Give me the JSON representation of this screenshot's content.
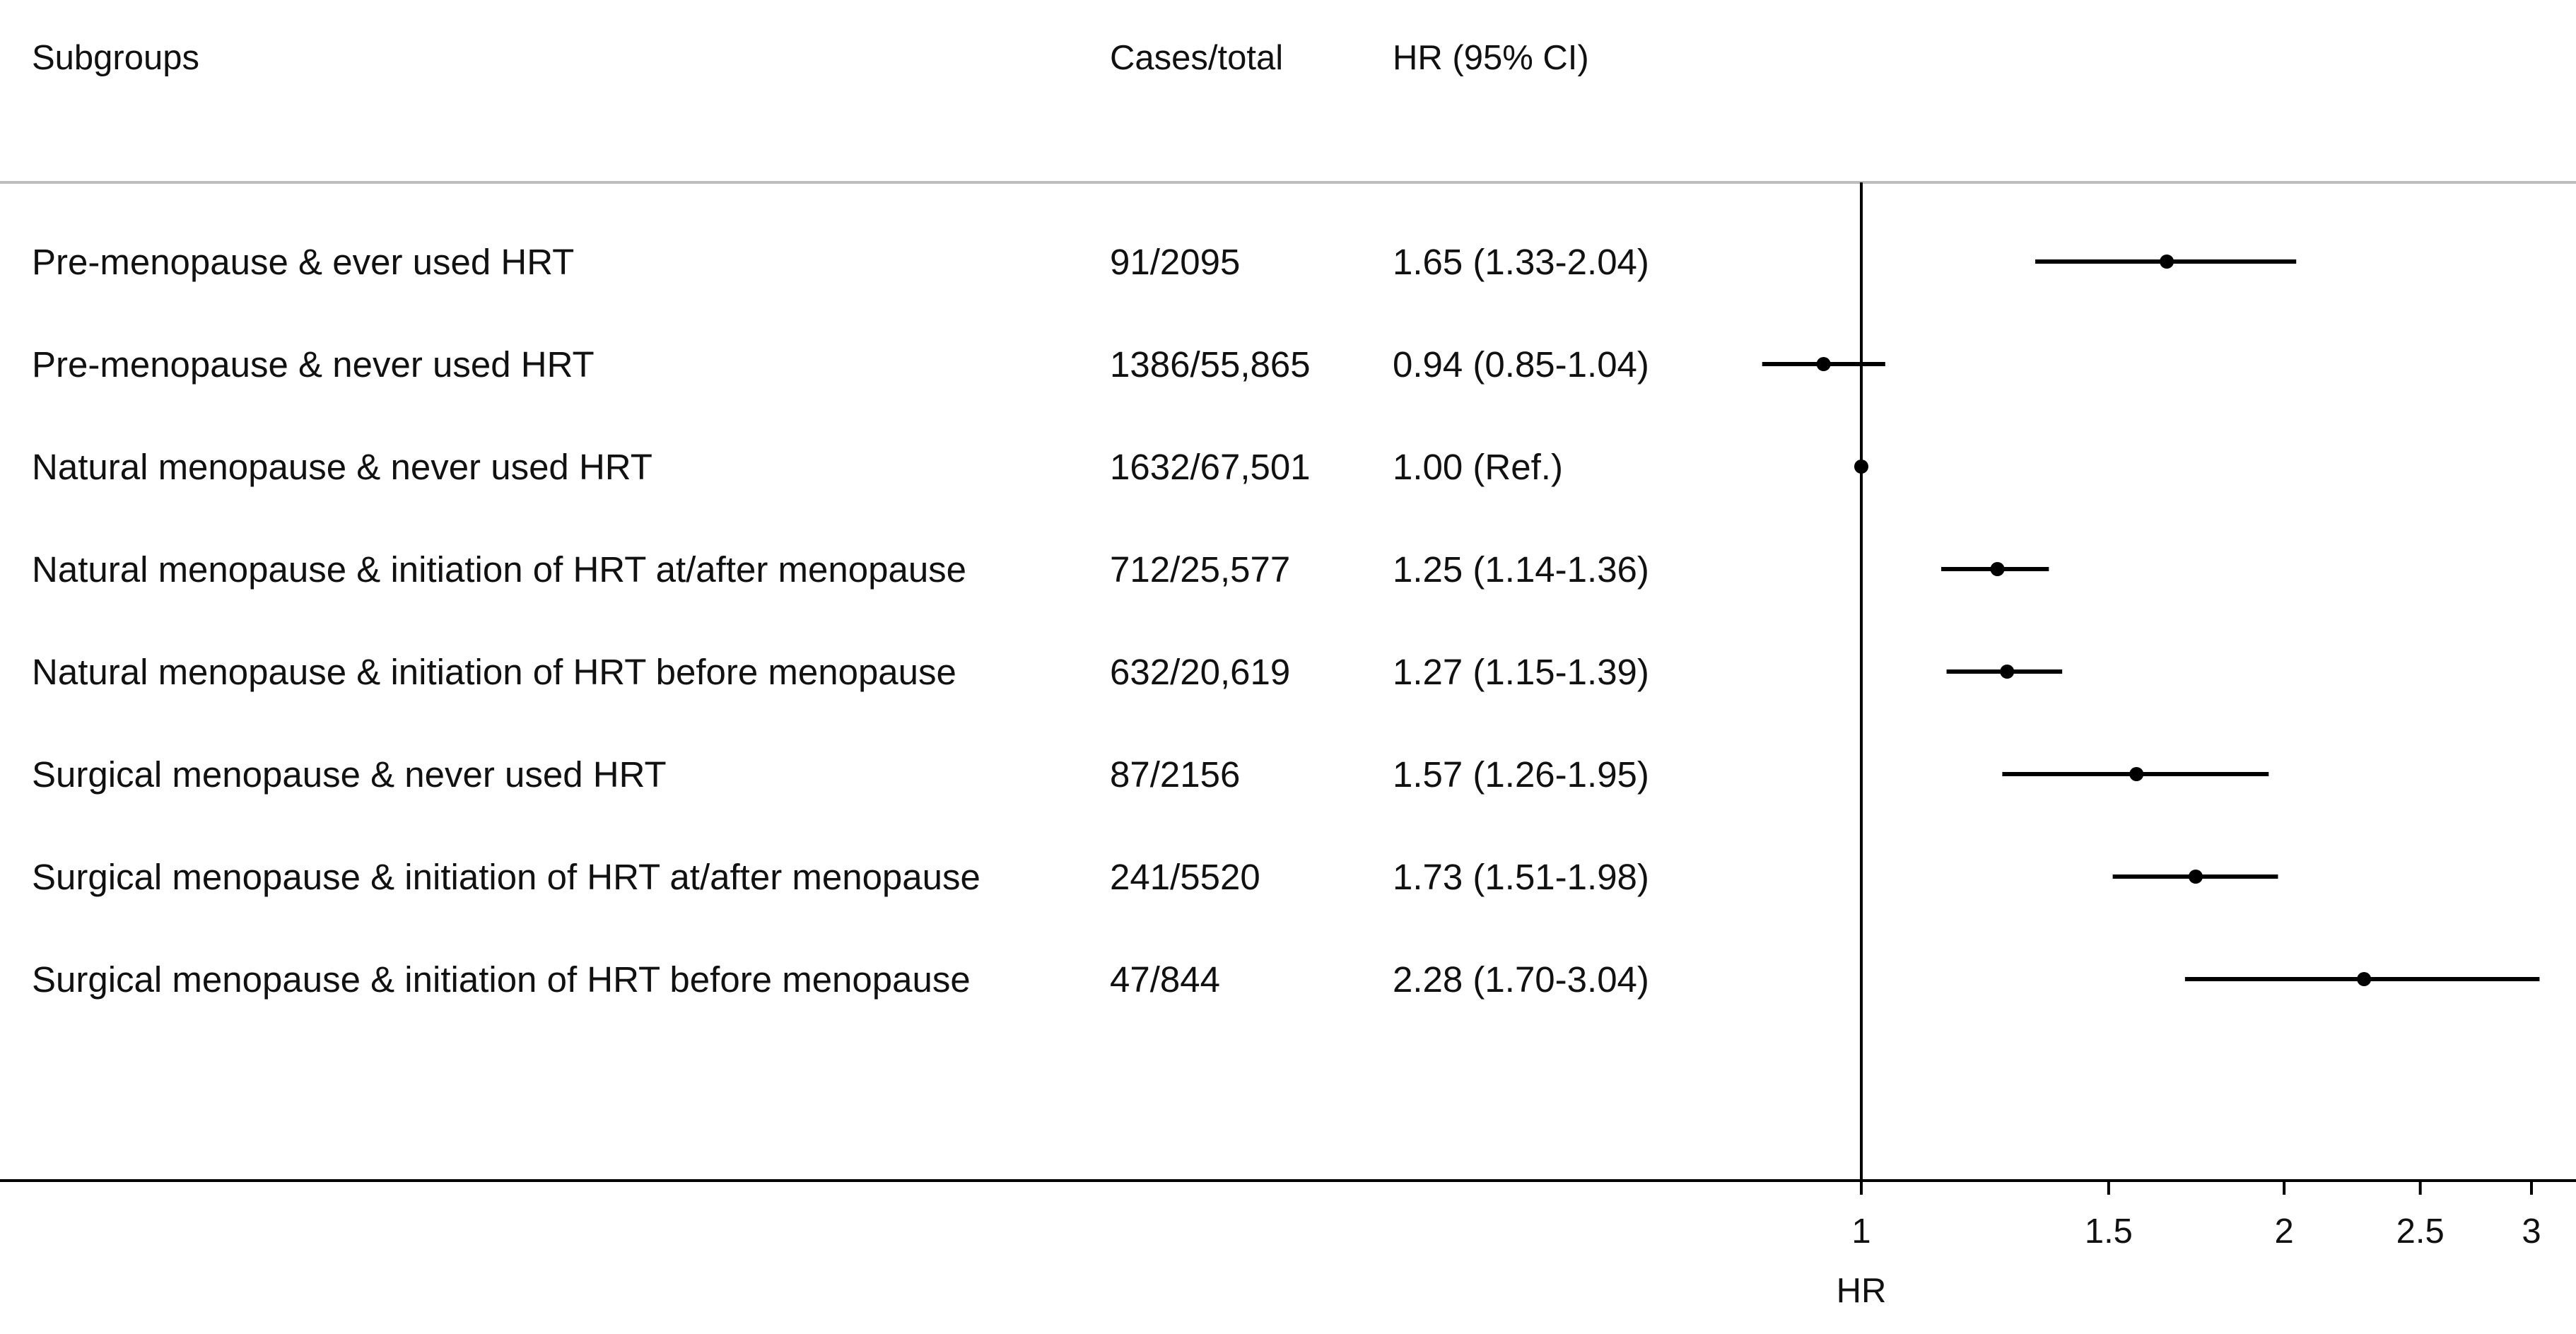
{
  "headers": {
    "subgroups": "Subgroups",
    "cases": "Cases/total",
    "hr": "HR (95% CI)"
  },
  "chart_data": {
    "type": "forest",
    "xlabel": "HR",
    "xscale": "log",
    "xlim": [
      0.84,
      3.06
    ],
    "reference_line": 1,
    "xticks": [
      1,
      1.5,
      2,
      2.5,
      3
    ],
    "xtick_labels": [
      "1",
      "1.5",
      "2",
      "2.5",
      "3"
    ],
    "rows": [
      {
        "label": "Pre-menopause & ever used HRT",
        "cases": "91/2095",
        "hr_text": "1.65 (1.33-2.04)",
        "hr": 1.65,
        "lo": 1.33,
        "hi": 2.04
      },
      {
        "label": "Pre-menopause & never used HRT",
        "cases": "1386/55,865",
        "hr_text": "0.94 (0.85-1.04)",
        "hr": 0.94,
        "lo": 0.85,
        "hi": 1.04
      },
      {
        "label": "Natural menopause & never used HRT",
        "cases": "1632/67,501",
        "hr_text": "1.00 (Ref.)",
        "hr": 1.0,
        "lo": 1.0,
        "hi": 1.0
      },
      {
        "label": "Natural menopause & initiation of HRT at/after menopause",
        "cases": "712/25,577",
        "hr_text": "1.25 (1.14-1.36)",
        "hr": 1.25,
        "lo": 1.14,
        "hi": 1.36
      },
      {
        "label": "Natural menopause & initiation of HRT before menopause",
        "cases": "632/20,619",
        "hr_text": "1.27 (1.15-1.39)",
        "hr": 1.27,
        "lo": 1.15,
        "hi": 1.39
      },
      {
        "label": "Surgical menopause & never used HRT",
        "cases": "87/2156",
        "hr_text": "1.57 (1.26-1.95)",
        "hr": 1.57,
        "lo": 1.26,
        "hi": 1.95
      },
      {
        "label": "Surgical menopause & initiation of HRT at/after menopause",
        "cases": "241/5520",
        "hr_text": "1.73 (1.51-1.98)",
        "hr": 1.73,
        "lo": 1.51,
        "hi": 1.98
      },
      {
        "label": "Surgical menopause & initiation of HRT before menopause",
        "cases": "47/844",
        "hr_text": "2.28 (1.70-3.04)",
        "hr": 2.28,
        "lo": 1.7,
        "hi": 3.04
      }
    ]
  }
}
